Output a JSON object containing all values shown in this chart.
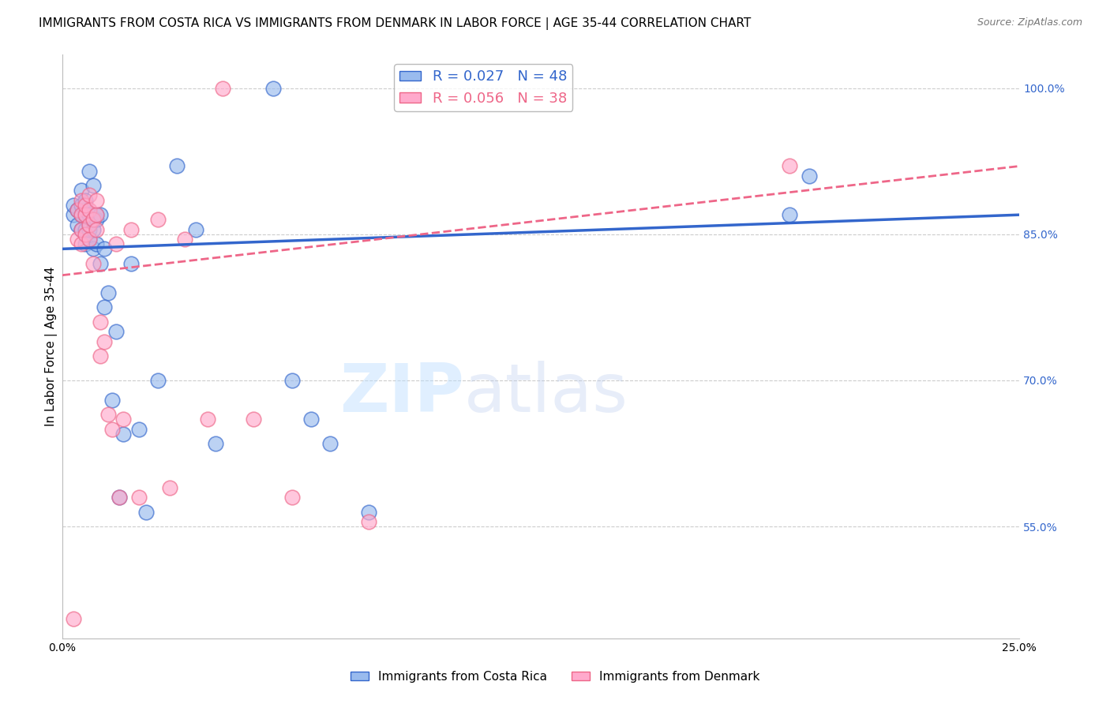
{
  "title": "IMMIGRANTS FROM COSTA RICA VS IMMIGRANTS FROM DENMARK IN LABOR FORCE | AGE 35-44 CORRELATION CHART",
  "source": "Source: ZipAtlas.com",
  "ylabel": "In Labor Force | Age 35-44",
  "xlim": [
    0.0,
    0.25
  ],
  "ylim": [
    0.435,
    1.035
  ],
  "xticks": [
    0.0,
    0.05,
    0.1,
    0.15,
    0.2,
    0.25
  ],
  "xticklabels": [
    "0.0%",
    "",
    "",
    "",
    "",
    "25.0%"
  ],
  "right_yticks": [
    0.55,
    0.7,
    0.85,
    1.0
  ],
  "right_yticklabels": [
    "55.0%",
    "70.0%",
    "85.0%",
    "100.0%"
  ],
  "legend_blue_label": "R = 0.027   N = 48",
  "legend_pink_label": "R = 0.056   N = 38",
  "blue_color": "#99BBEE",
  "pink_color": "#FFAACC",
  "trend_blue_color": "#3366CC",
  "trend_pink_color": "#EE6688",
  "watermark_zip": "ZIP",
  "watermark_atlas": "atlas",
  "costa_rica_x": [
    0.003,
    0.003,
    0.004,
    0.004,
    0.005,
    0.005,
    0.005,
    0.005,
    0.006,
    0.006,
    0.006,
    0.006,
    0.006,
    0.007,
    0.007,
    0.007,
    0.007,
    0.007,
    0.008,
    0.008,
    0.008,
    0.008,
    0.009,
    0.009,
    0.009,
    0.01,
    0.01,
    0.011,
    0.011,
    0.012,
    0.013,
    0.014,
    0.015,
    0.016,
    0.018,
    0.02,
    0.022,
    0.025,
    0.03,
    0.035,
    0.04,
    0.055,
    0.06,
    0.065,
    0.07,
    0.08,
    0.19,
    0.195
  ],
  "costa_rica_y": [
    0.87,
    0.88,
    0.86,
    0.875,
    0.855,
    0.87,
    0.88,
    0.895,
    0.84,
    0.855,
    0.87,
    0.875,
    0.885,
    0.845,
    0.855,
    0.86,
    0.87,
    0.915,
    0.835,
    0.855,
    0.865,
    0.9,
    0.84,
    0.865,
    0.87,
    0.82,
    0.87,
    0.775,
    0.835,
    0.79,
    0.68,
    0.75,
    0.58,
    0.645,
    0.82,
    0.65,
    0.565,
    0.7,
    0.92,
    0.855,
    0.635,
    1.0,
    0.7,
    0.66,
    0.635,
    0.565,
    0.87,
    0.91
  ],
  "denmark_x": [
    0.003,
    0.004,
    0.004,
    0.005,
    0.005,
    0.005,
    0.005,
    0.006,
    0.006,
    0.006,
    0.007,
    0.007,
    0.007,
    0.007,
    0.008,
    0.008,
    0.009,
    0.009,
    0.009,
    0.01,
    0.01,
    0.011,
    0.012,
    0.013,
    0.014,
    0.015,
    0.016,
    0.018,
    0.02,
    0.025,
    0.028,
    0.032,
    0.038,
    0.042,
    0.05,
    0.06,
    0.08,
    0.19
  ],
  "denmark_y": [
    0.455,
    0.845,
    0.875,
    0.84,
    0.855,
    0.87,
    0.885,
    0.85,
    0.87,
    0.88,
    0.845,
    0.86,
    0.875,
    0.89,
    0.82,
    0.865,
    0.855,
    0.87,
    0.885,
    0.725,
    0.76,
    0.74,
    0.665,
    0.65,
    0.84,
    0.58,
    0.66,
    0.855,
    0.58,
    0.865,
    0.59,
    0.845,
    0.66,
    1.0,
    0.66,
    0.58,
    0.555,
    0.92
  ],
  "blue_trend_x": [
    0.0,
    0.25
  ],
  "blue_trend_y": [
    0.835,
    0.87
  ],
  "pink_trend_x": [
    0.0,
    0.25
  ],
  "pink_trend_y": [
    0.808,
    0.92
  ],
  "title_fontsize": 11,
  "axis_label_fontsize": 11,
  "tick_fontsize": 10,
  "right_tick_color": "#3366CC",
  "background_color": "#FFFFFF",
  "grid_color": "#CCCCCC"
}
